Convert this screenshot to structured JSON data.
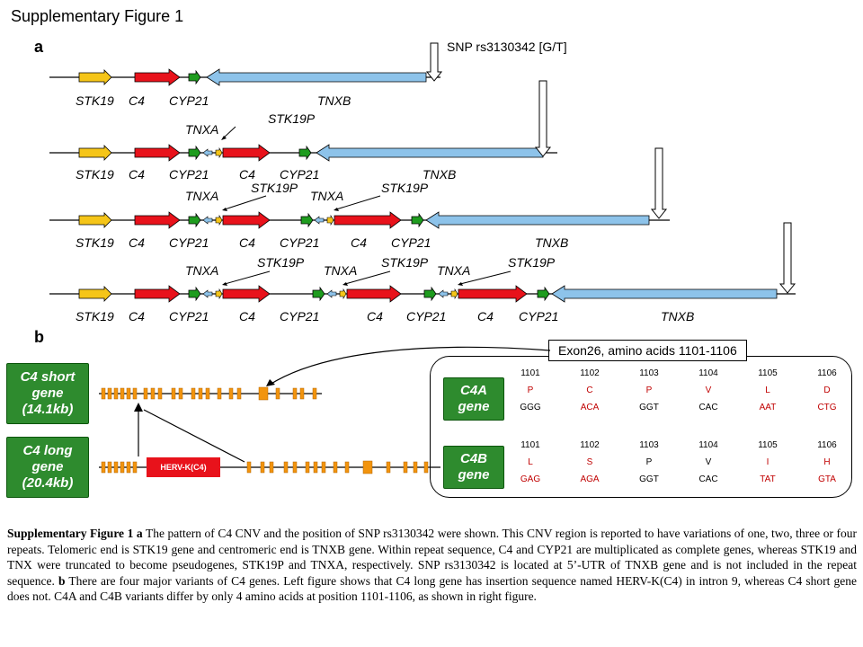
{
  "title": "Supplementary Figure 1",
  "panel_a": "a",
  "panel_b": "b",
  "snp_label": "SNP rs3130342 [G/T]",
  "gene_names": {
    "stk19": "STK19",
    "c4": "C4",
    "cyp21": "CYP21",
    "tnxb": "TNXB",
    "tnxa": "TNXA",
    "stk19p": "STK19P"
  },
  "exon_box_title": "Exon26, amino acids 1101-1106",
  "short_gene": "C4 short gene (14.1kb)",
  "long_gene": "C4 long gene (20.4kb)",
  "herv": "HERV-K(C4)",
  "c4a_label": "C4A gene",
  "c4b_label": "C4B gene",
  "c4a": {
    "positions": [
      "1101",
      "1102",
      "1103",
      "1104",
      "1105",
      "1106"
    ],
    "aa": [
      "P",
      "C",
      "P",
      "V",
      "L",
      "D"
    ],
    "codons": [
      "GGG",
      "ACA",
      "GGT",
      "CAC",
      "AAT",
      "CTG"
    ]
  },
  "c4b": {
    "positions": [
      "1101",
      "1102",
      "1103",
      "1104",
      "1105",
      "1106"
    ],
    "aa": [
      "L",
      "S",
      "P",
      "V",
      "I",
      "H"
    ],
    "codons": [
      "GAG",
      "AGA",
      "GGT",
      "CAC",
      "TAT",
      "GTA"
    ]
  },
  "caption_bold": "Supplementary Figure 1 a",
  "caption_part1": " The pattern of C4 CNV and the position of SNP rs3130342 were shown. This CNV region is reported to have variations of one, two, three or four repeats. Telomeric end is STK19 gene and centromeric end is TNXB gene. Within repeat sequence, C4 and CYP21 are multiplicated as complete genes, whereas STK19 and TNX were truncated to become pseudogenes, STK19P and TNXA, respectively. SNP rs3130342 is located at 5’-UTR of TNXB gene and is not included in the repeat sequence. ",
  "caption_bold_b": "b",
  "caption_part2": " There are four major variants of C4 genes. Left figure shows that C4 long gene has insertion sequence named HERV-K(C4) in intron 9, whereas C4 short gene does not. C4A and C4B variants differ by only 4 amino acids at position 1101-1106, as shown in right figure."
}
